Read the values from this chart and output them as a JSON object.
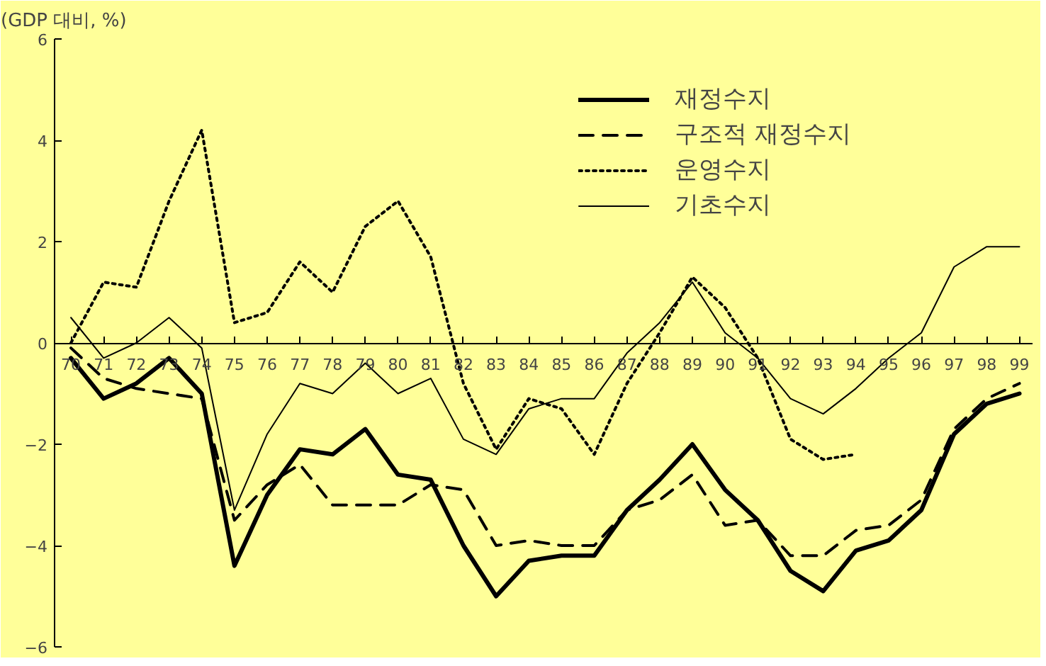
{
  "chart_data": {
    "type": "line",
    "ylabel": "(GDP 대비, %)",
    "categories": [
      "70",
      "71",
      "72",
      "73",
      "74",
      "75",
      "76",
      "77",
      "78",
      "79",
      "80",
      "81",
      "82",
      "83",
      "84",
      "85",
      "86",
      "87",
      "88",
      "89",
      "90",
      "91",
      "92",
      "93",
      "94",
      "95",
      "96",
      "97",
      "98",
      "99"
    ],
    "series": [
      {
        "name": "재정수지",
        "color": "#000000",
        "line_style": "solid",
        "values": [
          -0.3,
          -1.1,
          -0.8,
          -0.3,
          -1.0,
          -4.4,
          -3.0,
          -2.1,
          -2.2,
          -1.7,
          -2.6,
          -2.7,
          -4.0,
          -5.0,
          -4.3,
          -4.2,
          -4.2,
          -3.3,
          -2.7,
          -2.0,
          -2.9,
          -3.5,
          -4.5,
          -4.9,
          -4.1,
          -3.9,
          -3.3,
          -1.8,
          -1.2,
          -1.0
        ]
      },
      {
        "name": "구조적 재정수지",
        "color": "#000000",
        "line_style": "dashed",
        "values": [
          -0.1,
          -0.7,
          -0.9,
          -1.0,
          -1.1,
          -3.5,
          -2.8,
          -2.4,
          -3.2,
          -3.2,
          -3.2,
          -2.8,
          -2.9,
          -4.0,
          -3.9,
          -4.0,
          -4.0,
          -3.3,
          -3.1,
          -2.6,
          -3.6,
          -3.5,
          -4.2,
          -4.2,
          -3.7,
          -3.6,
          -3.1,
          -1.7,
          -1.1,
          -0.8
        ]
      },
      {
        "name": "운영수지",
        "color": "#000000",
        "line_style": "dotted",
        "values": [
          0.0,
          1.2,
          1.1,
          2.8,
          4.2,
          0.4,
          0.6,
          1.6,
          1.0,
          2.3,
          2.8,
          1.7,
          -0.8,
          -2.1,
          -1.1,
          -1.3,
          -2.2,
          -0.8,
          0.2,
          1.3,
          0.7,
          -0.3,
          -1.9,
          -2.3,
          -2.2,
          null,
          null,
          null,
          null,
          null
        ]
      },
      {
        "name": "기초수지",
        "color": "#000000",
        "line_style": "solid",
        "values": [
          0.5,
          -0.3,
          0.0,
          0.5,
          -0.1,
          -3.3,
          -1.8,
          -0.8,
          -1.0,
          -0.4,
          -1.0,
          -0.7,
          -1.9,
          -2.2,
          -1.3,
          -1.1,
          -1.1,
          -0.2,
          0.4,
          1.2,
          0.2,
          -0.3,
          -1.1,
          -1.4,
          -0.9,
          -0.3,
          0.2,
          1.5,
          1.9,
          1.9
        ]
      }
    ],
    "ylim": [
      -6,
      6
    ],
    "yticks": [
      {
        "value": -6,
        "label": "−6"
      },
      {
        "value": -4,
        "label": "−4"
      },
      {
        "value": -2,
        "label": "−2"
      },
      0,
      2,
      4,
      6
    ],
    "grid": false,
    "legend": "top right"
  }
}
